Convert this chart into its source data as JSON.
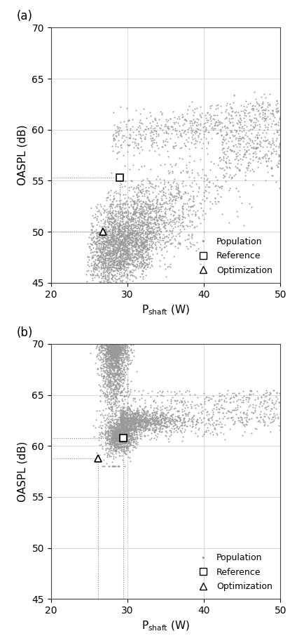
{
  "fig_width": 4.24,
  "fig_height": 9.16,
  "dpi": 100,
  "background_color": "#ffffff",
  "scatter_color": "#999999",
  "scatter_size": 2.0,
  "panel_a": {
    "label": "(a)",
    "xlim": [
      20,
      50
    ],
    "ylim": [
      45,
      70
    ],
    "xticks": [
      20,
      30,
      40,
      50
    ],
    "yticks": [
      45,
      50,
      55,
      60,
      65,
      70
    ],
    "xlabel": "P$_{\\mathrm{shaft}}$ (W)",
    "ylabel": "OASPL (dB)",
    "ref_x": 29.0,
    "ref_y": 55.3,
    "opt_x": 26.8,
    "opt_y": 50.0
  },
  "panel_b": {
    "label": "(b)",
    "xlim": [
      20,
      50
    ],
    "ylim": [
      45,
      70
    ],
    "xticks": [
      20,
      30,
      40,
      50
    ],
    "yticks": [
      45,
      50,
      55,
      60,
      65,
      70
    ],
    "xlabel": "P$_{\\mathrm{shaft}}$ (W)",
    "ylabel": "OASPL (dB)",
    "ref_x": 29.5,
    "ref_y": 60.8,
    "opt_x": 26.2,
    "opt_y": 58.8
  },
  "legend_dot_label": "Population",
  "legend_square_label": "Reference",
  "legend_triangle_label": "Optimization",
  "dotted_line_color": "#888888",
  "marker_color": "#000000",
  "marker_size": 7
}
